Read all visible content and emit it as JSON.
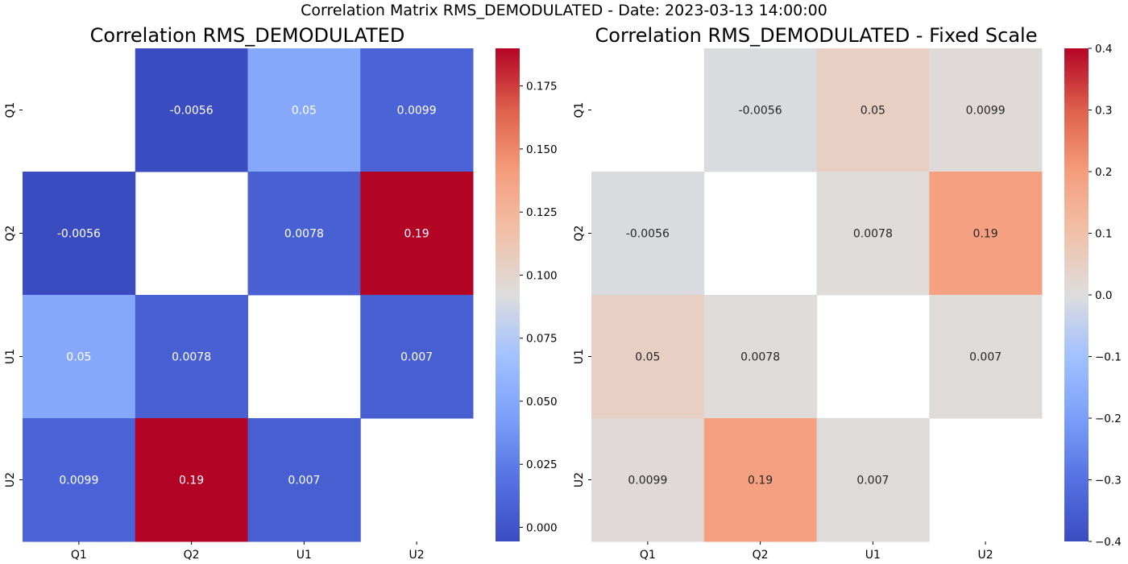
{
  "suptitle": "Correlation Matrix RMS_DEMODULATED - Date: 2023-03-13 14:00:00",
  "chart_data": [
    {
      "type": "heatmap",
      "title": "Correlation RMS_DEMODULATED",
      "rows": [
        "Q1",
        "Q2",
        "U1",
        "U2"
      ],
      "columns": [
        "Q1",
        "Q2",
        "U1",
        "U2"
      ],
      "values": [
        [
          null,
          -0.0056,
          0.05,
          0.0099
        ],
        [
          -0.0056,
          null,
          0.0078,
          0.19
        ],
        [
          0.05,
          0.0078,
          null,
          0.007
        ],
        [
          0.0099,
          0.19,
          0.007,
          null
        ]
      ],
      "annotations": [
        [
          "",
          "-0.0056",
          "0.05",
          "0.0099"
        ],
        [
          "-0.0056",
          "",
          "0.0078",
          "0.19"
        ],
        [
          "0.05",
          "0.0078",
          "",
          "0.007"
        ],
        [
          "0.0099",
          "0.19",
          "0.007",
          ""
        ]
      ],
      "colormap": "coolwarm",
      "vmin": -0.0056,
      "vmax": 0.1899,
      "colorbar_ticks": [
        "0.000",
        "0.025",
        "0.050",
        "0.075",
        "0.100",
        "0.125",
        "0.150",
        "0.175"
      ],
      "colorbar_tick_values": [
        0.0,
        0.025,
        0.05,
        0.075,
        0.1,
        0.125,
        0.15,
        0.175
      ]
    },
    {
      "type": "heatmap",
      "title": "Correlation RMS_DEMODULATED - Fixed Scale",
      "rows": [
        "Q1",
        "Q2",
        "U1",
        "U2"
      ],
      "columns": [
        "Q1",
        "Q2",
        "U1",
        "U2"
      ],
      "values": [
        [
          null,
          -0.0056,
          0.05,
          0.0099
        ],
        [
          -0.0056,
          null,
          0.0078,
          0.19
        ],
        [
          0.05,
          0.0078,
          null,
          0.007
        ],
        [
          0.0099,
          0.19,
          0.007,
          null
        ]
      ],
      "annotations": [
        [
          "",
          "-0.0056",
          "0.05",
          "0.0099"
        ],
        [
          "-0.0056",
          "",
          "0.0078",
          "0.19"
        ],
        [
          "0.05",
          "0.0078",
          "",
          "0.007"
        ],
        [
          "0.0099",
          "0.19",
          "0.007",
          ""
        ]
      ],
      "colormap": "coolwarm",
      "vmin": -0.4,
      "vmax": 0.4,
      "colorbar_ticks": [
        "−0.4",
        "−0.3",
        "−0.2",
        "−0.1",
        "0.0",
        "0.1",
        "0.2",
        "0.3",
        "0.4"
      ],
      "colorbar_tick_values": [
        -0.4,
        -0.3,
        -0.2,
        -0.1,
        0.0,
        0.1,
        0.2,
        0.3,
        0.4
      ]
    }
  ]
}
